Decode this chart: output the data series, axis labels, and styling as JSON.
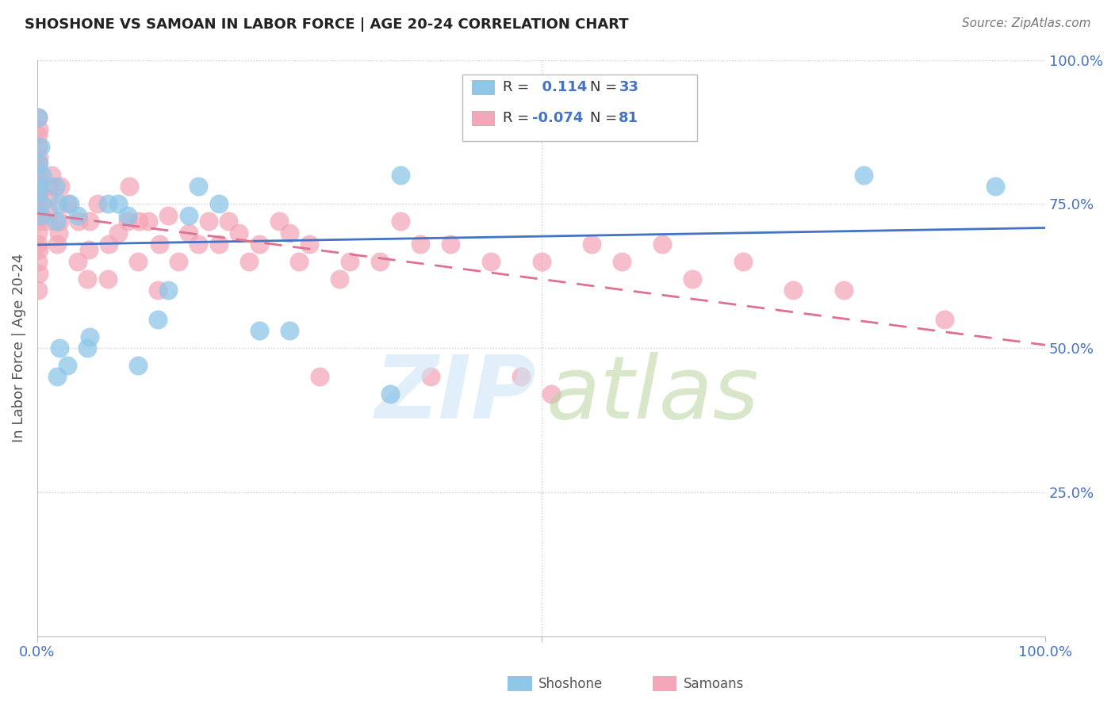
{
  "title": "SHOSHONE VS SAMOAN IN LABOR FORCE | AGE 20-24 CORRELATION CHART",
  "source": "Source: ZipAtlas.com",
  "ylabel": "In Labor Force | Age 20-24",
  "xlim": [
    0,
    1.0
  ],
  "ylim": [
    0,
    1.0
  ],
  "shoshone_color": "#8ec6e8",
  "samoan_color": "#f4a7b9",
  "shoshone_line_color": "#4472c4",
  "samoan_line_color": "#e07090",
  "grid_color": "#cccccc",
  "shoshone_x": [
    0.003,
    0.004,
    0.001,
    0.002,
    0.005,
    0.002,
    0.003,
    0.001,
    0.02,
    0.022,
    0.019,
    0.021,
    0.018,
    0.03,
    0.032,
    0.04,
    0.05,
    0.052,
    0.07,
    0.08,
    0.09,
    0.1,
    0.12,
    0.13,
    0.15,
    0.16,
    0.18,
    0.22,
    0.25,
    0.35,
    0.36,
    0.82,
    0.95
  ],
  "shoshone_y": [
    0.73,
    0.75,
    0.77,
    0.78,
    0.8,
    0.82,
    0.85,
    0.9,
    0.45,
    0.5,
    0.72,
    0.75,
    0.78,
    0.47,
    0.75,
    0.73,
    0.5,
    0.52,
    0.75,
    0.75,
    0.73,
    0.47,
    0.55,
    0.6,
    0.73,
    0.78,
    0.75,
    0.53,
    0.53,
    0.42,
    0.8,
    0.8,
    0.78
  ],
  "samoan_x": [
    0.001,
    0.002,
    0.001,
    0.002,
    0.001,
    0.001,
    0.002,
    0.001,
    0.001,
    0.002,
    0.001,
    0.002,
    0.001,
    0.002,
    0.001,
    0.001,
    0.002,
    0.001,
    0.001,
    0.002,
    0.001,
    0.01,
    0.011,
    0.012,
    0.013,
    0.014,
    0.02,
    0.021,
    0.022,
    0.023,
    0.03,
    0.04,
    0.041,
    0.05,
    0.051,
    0.052,
    0.06,
    0.07,
    0.071,
    0.08,
    0.09,
    0.091,
    0.1,
    0.101,
    0.11,
    0.12,
    0.121,
    0.13,
    0.14,
    0.15,
    0.16,
    0.17,
    0.18,
    0.19,
    0.2,
    0.21,
    0.22,
    0.24,
    0.25,
    0.26,
    0.27,
    0.28,
    0.3,
    0.31,
    0.34,
    0.36,
    0.38,
    0.39,
    0.41,
    0.45,
    0.48,
    0.5,
    0.51,
    0.55,
    0.58,
    0.62,
    0.65,
    0.7,
    0.75,
    0.8,
    0.9
  ],
  "samoan_y": [
    0.6,
    0.63,
    0.65,
    0.67,
    0.68,
    0.7,
    0.72,
    0.73,
    0.74,
    0.75,
    0.76,
    0.77,
    0.78,
    0.79,
    0.8,
    0.82,
    0.83,
    0.85,
    0.87,
    0.88,
    0.9,
    0.72,
    0.74,
    0.76,
    0.78,
    0.8,
    0.68,
    0.7,
    0.72,
    0.78,
    0.75,
    0.65,
    0.72,
    0.62,
    0.67,
    0.72,
    0.75,
    0.62,
    0.68,
    0.7,
    0.72,
    0.78,
    0.65,
    0.72,
    0.72,
    0.6,
    0.68,
    0.73,
    0.65,
    0.7,
    0.68,
    0.72,
    0.68,
    0.72,
    0.7,
    0.65,
    0.68,
    0.72,
    0.7,
    0.65,
    0.68,
    0.45,
    0.62,
    0.65,
    0.65,
    0.72,
    0.68,
    0.45,
    0.68,
    0.65,
    0.45,
    0.65,
    0.42,
    0.68,
    0.65,
    0.68,
    0.62,
    0.65,
    0.6,
    0.6,
    0.55
  ]
}
